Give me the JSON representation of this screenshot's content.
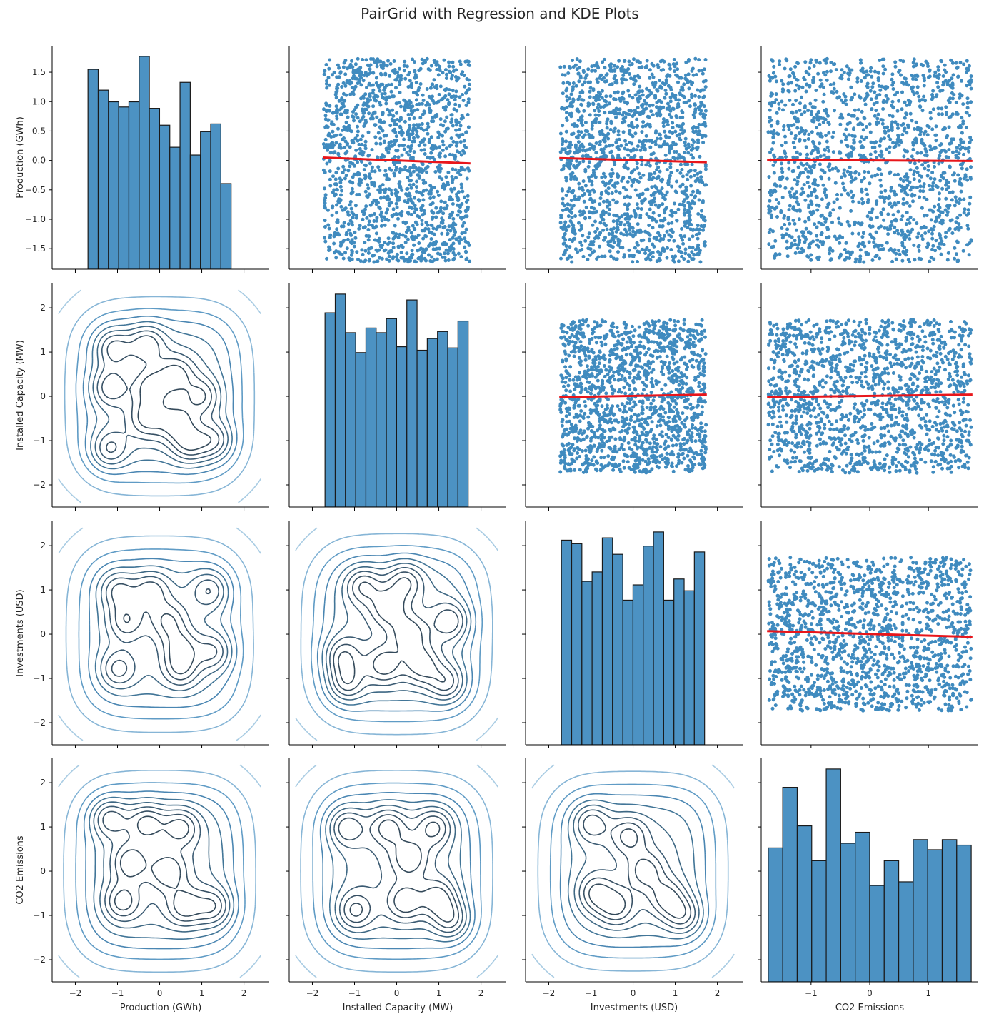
{
  "title": "PairGrid with Regression and KDE Plots",
  "colors": {
    "scatter": "#1f77b4",
    "hist_fill": "#4c92c3",
    "hist_edge": "#1a1a1a",
    "regression": "#e8161b",
    "kde_levels": [
      "#a9cce3",
      "#86b5d6",
      "#5f9bc5",
      "#4a86b2",
      "#417597",
      "#3d6783",
      "#3a5a72",
      "#364f63",
      "#33495a"
    ]
  },
  "chart_data": {
    "type": "pairgrid",
    "variables": [
      "Production (GWh)",
      "Installed Capacity (MW)",
      "Investments (USD)",
      "CO2 Emissions"
    ],
    "variable_range": [
      -1.73,
      1.73
    ],
    "n_points_per_scatter": 1500,
    "panels": {
      "diagonal": "histogram",
      "upper": "scatter with regression line",
      "lower": "kde contour"
    },
    "axes": {
      "row_ylims": [
        [
          -1.85,
          1.95
        ],
        [
          -2.5,
          2.55
        ],
        [
          -2.5,
          2.55
        ],
        [
          -2.5,
          2.55
        ]
      ],
      "row_yticks": [
        [
          -1.5,
          -1.0,
          -0.5,
          0.0,
          0.5,
          1.0,
          1.5
        ],
        [
          -2,
          -1,
          0,
          1,
          2
        ],
        [
          -2,
          -1,
          0,
          1,
          2
        ],
        [
          -2,
          -1,
          0,
          1,
          2
        ]
      ],
      "row_ytick_labels": [
        [
          "−1.5",
          "−1.0",
          "−0.5",
          "0.0",
          "0.5",
          "1.0",
          "1.5"
        ],
        [
          "−2",
          "−1",
          "0",
          "1",
          "2"
        ],
        [
          "−2",
          "−1",
          "0",
          "1",
          "2"
        ],
        [
          "−2",
          "−1",
          "0",
          "1",
          "2"
        ]
      ],
      "col_xlims": [
        [
          -2.55,
          2.6
        ],
        [
          -2.55,
          2.6
        ],
        [
          -2.55,
          2.6
        ],
        [
          -1.85,
          1.85
        ]
      ],
      "col_xticks": [
        [
          -2,
          -1,
          0,
          1,
          2
        ],
        [
          -2,
          -1,
          0,
          1,
          2
        ],
        [
          -2,
          -1,
          0,
          1,
          2
        ],
        [
          -1,
          0,
          1
        ]
      ],
      "col_xtick_labels": [
        [
          "−2",
          "−1",
          "0",
          "1",
          "2"
        ],
        [
          "−2",
          "−1",
          "0",
          "1",
          "2"
        ],
        [
          "−2",
          "−1",
          "0",
          "1",
          "2"
        ],
        [
          "−1",
          "0",
          "1"
        ]
      ]
    },
    "histograms": [
      {
        "variable": "Production (GWh)",
        "bin_start": -1.7,
        "bin_width": 0.2426,
        "heights": [
          1.54,
          1.38,
          1.29,
          1.25,
          1.29,
          1.64,
          1.24,
          1.11,
          0.94,
          1.44,
          0.88,
          1.06,
          1.12,
          0.66
        ]
      },
      {
        "variable": "Installed Capacity (MW)",
        "bin_start": -1.7,
        "bin_width": 0.2426,
        "heights": [
          1.66,
          1.82,
          1.49,
          1.32,
          1.53,
          1.49,
          1.61,
          1.37,
          1.77,
          1.34,
          1.44,
          1.5,
          1.36,
          1.59
        ]
      },
      {
        "variable": "Investments (USD)",
        "bin_start": -1.7,
        "bin_width": 0.2426,
        "heights": [
          1.74,
          1.71,
          1.39,
          1.47,
          1.76,
          1.62,
          1.23,
          1.36,
          1.69,
          1.81,
          1.23,
          1.41,
          1.31,
          1.64
        ]
      },
      {
        "variable": "CO2 Emissions",
        "bin_start": -1.73,
        "bin_width": 0.2471,
        "heights": [
          1.46,
          2.12,
          1.7,
          1.32,
          2.32,
          1.51,
          1.63,
          1.05,
          1.32,
          1.09,
          1.55,
          1.44,
          1.55,
          1.49
        ]
      }
    ],
    "regressions": [
      {
        "row": 0,
        "col": 1,
        "y_at_xmin": 0.05,
        "y_at_xmax": -0.05
      },
      {
        "row": 0,
        "col": 2,
        "y_at_xmin": 0.04,
        "y_at_xmax": -0.03
      },
      {
        "row": 0,
        "col": 3,
        "y_at_xmin": 0.01,
        "y_at_xmax": -0.01
      },
      {
        "row": 1,
        "col": 2,
        "y_at_xmin": -0.02,
        "y_at_xmax": 0.04
      },
      {
        "row": 1,
        "col": 3,
        "y_at_xmin": -0.02,
        "y_at_xmax": 0.04
      },
      {
        "row": 2,
        "col": 3,
        "y_at_xmin": 0.07,
        "y_at_xmax": -0.06
      }
    ],
    "kde": {
      "levels": 9,
      "panels": [
        {
          "row": 1,
          "col": 0,
          "peaks": [
            [
              -1.1,
              1.1
            ],
            [
              -0.3,
              1.2
            ],
            [
              -1.2,
              0.2
            ],
            [
              -0.2,
              0.2
            ],
            [
              0.4,
              0.5
            ],
            [
              1.0,
              0.0
            ],
            [
              -0.3,
              -0.5
            ],
            [
              0.4,
              -0.6
            ],
            [
              -1.2,
              -1.2
            ],
            [
              0.7,
              -1.1
            ],
            [
              1.3,
              -1.0
            ]
          ]
        },
        {
          "row": 2,
          "col": 0,
          "peaks": [
            [
              -1.0,
              1.0
            ],
            [
              -0.2,
              1.0
            ],
            [
              -0.8,
              0.3
            ],
            [
              0.2,
              0.3
            ],
            [
              0.5,
              -0.3
            ],
            [
              1.3,
              -0.4
            ],
            [
              -1.0,
              -0.8
            ],
            [
              0.5,
              -0.8
            ],
            [
              1.2,
              1.0
            ]
          ]
        },
        {
          "row": 2,
          "col": 1,
          "peaks": [
            [
              -0.8,
              1.1
            ],
            [
              0.2,
              1.2
            ],
            [
              -0.2,
              0.6
            ],
            [
              0.3,
              0.0
            ],
            [
              1.3,
              0.3
            ],
            [
              -1.3,
              -0.5
            ],
            [
              -0.3,
              -0.7
            ],
            [
              0.6,
              -0.7
            ],
            [
              1.2,
              -1.1
            ],
            [
              -1.2,
              -1.1
            ]
          ]
        },
        {
          "row": 3,
          "col": 0,
          "peaks": [
            [
              -1.2,
              1.2
            ],
            [
              -0.3,
              1.1
            ],
            [
              0.5,
              1.0
            ],
            [
              -0.7,
              0.2
            ],
            [
              0.2,
              0.0
            ],
            [
              -0.9,
              -0.7
            ],
            [
              0.6,
              -0.8
            ],
            [
              1.3,
              -0.8
            ]
          ]
        },
        {
          "row": 3,
          "col": 1,
          "peaks": [
            [
              -1.2,
              1.0
            ],
            [
              -0.2,
              1.0
            ],
            [
              0.9,
              1.0
            ],
            [
              0.3,
              0.3
            ],
            [
              -1.0,
              -0.9
            ],
            [
              0.2,
              -0.7
            ],
            [
              1.0,
              -0.6
            ],
            [
              1.3,
              -1.1
            ]
          ]
        },
        {
          "row": 3,
          "col": 2,
          "peaks": [
            [
              -1.0,
              1.1
            ],
            [
              -0.1,
              0.8
            ],
            [
              0.3,
              0.0
            ],
            [
              -0.9,
              -0.5
            ],
            [
              -0.4,
              -0.8
            ],
            [
              0.8,
              -0.6
            ],
            [
              1.2,
              -1.0
            ]
          ]
        }
      ]
    }
  }
}
